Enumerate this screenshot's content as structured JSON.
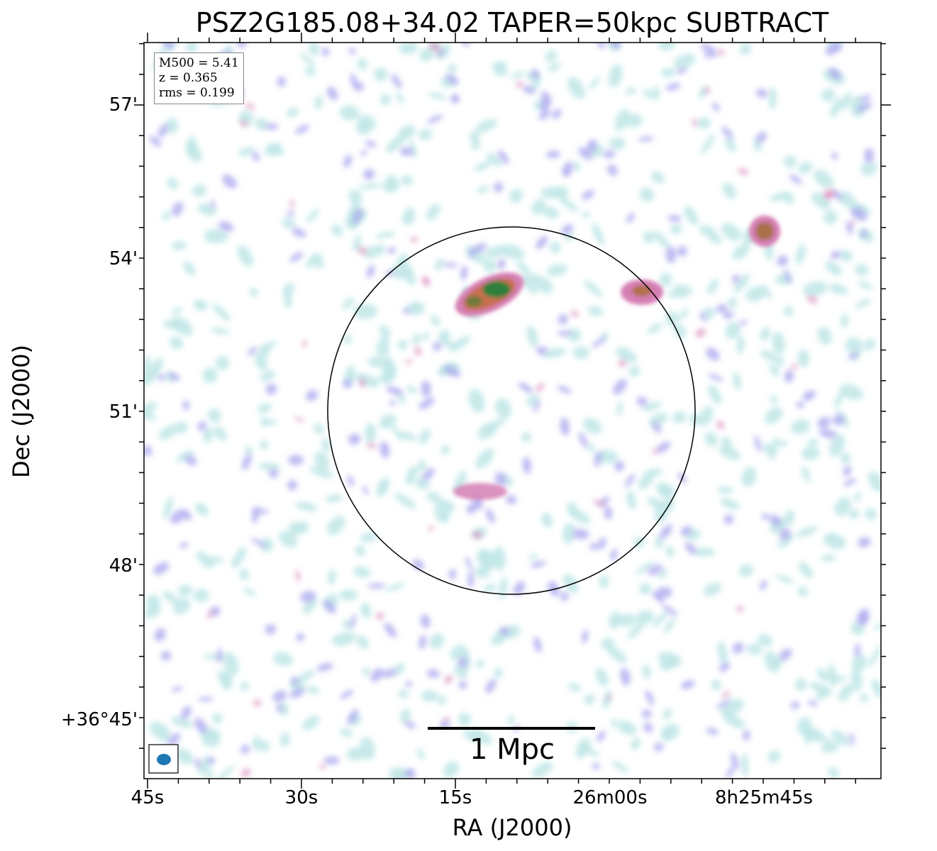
{
  "title": "PSZ2G185.08+34.02 TAPER=50kpc SUBTRACT",
  "axes": {
    "xlabel": "RA (J2000)",
    "ylabel": "Dec (J2000)",
    "xticks": [
      "45s",
      "30s",
      "15s",
      "26m00s",
      "8h25m45s"
    ],
    "yticks": [
      "57'",
      "54'",
      "51'",
      "48'",
      "+36°45'"
    ]
  },
  "infobox": {
    "line1": "M500 = 5.41",
    "line2": "z = 0.365",
    "line3": "rms = 0.199"
  },
  "scalebar": {
    "label": "1 Mpc"
  },
  "colors": {
    "faint": "#bfe6e6",
    "low": "#a9a6ee",
    "mid": "#d57fb4",
    "high": "#c97050",
    "peak": "#2f7f3c",
    "beam": "#1f77b4",
    "circle": "#000000"
  }
}
